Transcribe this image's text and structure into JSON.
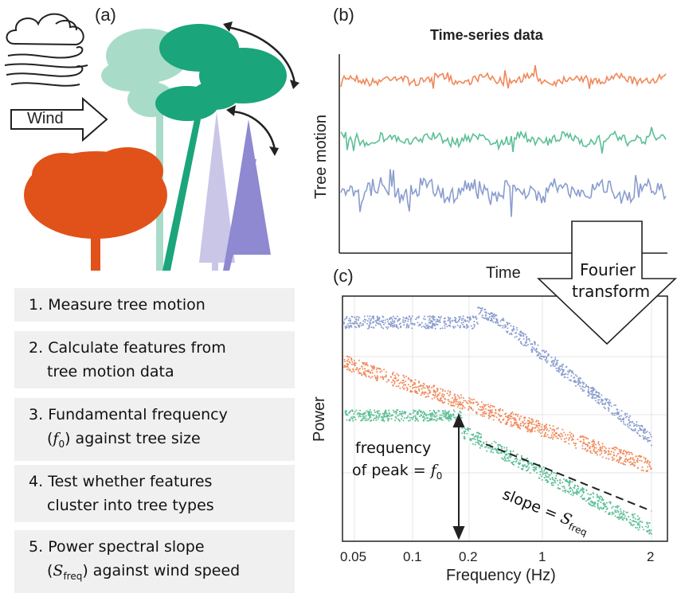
{
  "panels": {
    "a": "(a)",
    "b": "(b)",
    "c": "(c)"
  },
  "wind_label": "Wind",
  "steps": [
    {
      "num": "1.",
      "line1": "Measure tree motion",
      "line2": ""
    },
    {
      "num": "2.",
      "line1": "Calculate features from",
      "line2": "tree motion data"
    },
    {
      "num": "3.",
      "line1": "Fundamental frequency",
      "line2_pre": "(",
      "line2_sym": "f",
      "line2_sub": "0",
      "line2_post": ") against tree size"
    },
    {
      "num": "4.",
      "line1": "Test whether features",
      "line2": "cluster into tree types"
    },
    {
      "num": "5.",
      "line1": "Power spectral slope",
      "line2_pre": "(",
      "line2_sym": "S",
      "line2_sub": "freq",
      "line2_post": ") against wind speed"
    }
  ],
  "timeseries": {
    "title": "Time-series data",
    "ylabel": "Tree motion",
    "xlabel": "Time",
    "colors": [
      "#f0885a",
      "#5cbf96",
      "#8a9dce"
    ]
  },
  "fourier": {
    "line1": "Fourier",
    "line2": "transform"
  },
  "spectrum": {
    "ylabel": "Power",
    "xlabel": "Frequency (Hz)",
    "xticks": [
      "0.05",
      "0.1",
      "0.2",
      "1",
      "2"
    ],
    "annot_peak_line1": "frequency",
    "annot_peak_line2_pre": "of peak = ",
    "annot_peak_sym": "f",
    "annot_peak_sub": "0",
    "annot_slope_pre": "slope = ",
    "annot_slope_sym": "S",
    "annot_slope_sub": "freq"
  },
  "colors": {
    "orange": "#e0521a",
    "green": "#1aa57a",
    "lightgreen": "#a8dcc8",
    "purple": "#8e89d0",
    "lightpurple": "#c9c6e8"
  }
}
